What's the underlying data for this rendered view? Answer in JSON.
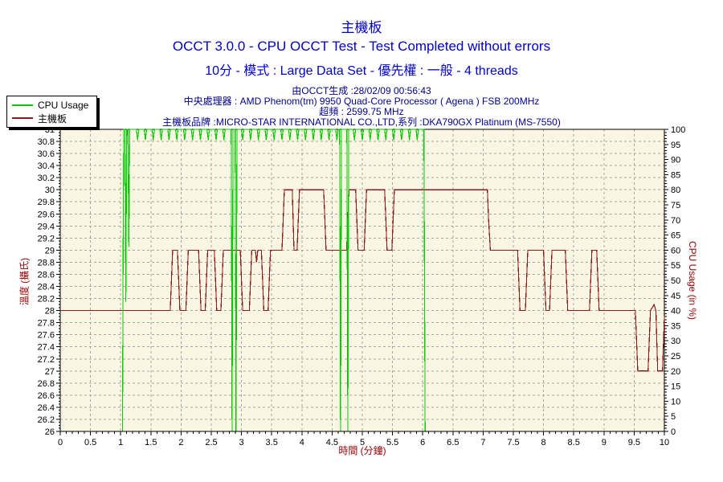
{
  "colors": {
    "title_blue": "#0000CD",
    "info_navy": "#000090",
    "axis_title_red": "#990000",
    "plot_background": "#FBF6E3",
    "grid": "#A6A6A6",
    "axis_border": "#000000",
    "tick_label": "#000000",
    "cpu_usage_green": "#00CC00",
    "temperature_red": "#8B1A1A"
  },
  "titles": {
    "sensor": "主機板",
    "test": "OCCT 3.0.0 - CPU OCCT Test - Test Completed without errors",
    "config": "10分 - 模式 : Large Data Set - 優先權 : 一般 - 4 threads"
  },
  "info": {
    "generated": "由OCCT生成 :28/02/09 00:56:43",
    "cpu": "中央處理器 : AMD Phenom(tm) 9950 Quad-Core Processor ( Agena ) FSB 200MHz",
    "frequency": "超頻 : 2599.75 MHz",
    "motherboard": "主機板品牌 :MICRO-STAR INTERNATIONAL CO.,LTD,系列 :DKA790GX Platinum (MS-7550)"
  },
  "legend": {
    "items": [
      {
        "label": "CPU Usage",
        "color": "#00CC00"
      },
      {
        "label": "主機板",
        "color": "#8B1A1A"
      }
    ]
  },
  "chart_data": {
    "type": "line",
    "title": "主機板",
    "x_axis": {
      "label": "時間 (分鐘)",
      "min": 0,
      "max": 10,
      "major_tick": 0.5,
      "minor_tick": 0.1,
      "tick_labels": [
        "0",
        "0.5",
        "1",
        "1.5",
        "2",
        "2.5",
        "3",
        "3.5",
        "4",
        "4.5",
        "5",
        "5.5",
        "6",
        "6.5",
        "7",
        "7.5",
        "8",
        "8.5",
        "9",
        "9.5",
        "10"
      ]
    },
    "y_left": {
      "label": "溫度 (攝氏)",
      "min": 26,
      "max": 31,
      "major_tick": 0.2,
      "minor_tick": 0.05,
      "tick_labels": [
        "26",
        "26.2",
        "26.4",
        "26.6",
        "26.8",
        "27",
        "27.2",
        "27.4",
        "27.6",
        "27.8",
        "28",
        "28.2",
        "28.4",
        "28.6",
        "28.8",
        "29",
        "29.2",
        "29.4",
        "29.6",
        "29.8",
        "30",
        "30.2",
        "30.4",
        "30.6",
        "30.8",
        "31"
      ]
    },
    "y_right": {
      "label": "CPU Usage (in %)",
      "min": 0,
      "max": 100,
      "major_tick": 5,
      "minor_tick": 1,
      "tick_labels": [
        "0",
        "5",
        "10",
        "15",
        "20",
        "25",
        "30",
        "35",
        "40",
        "45",
        "50",
        "55",
        "60",
        "65",
        "70",
        "75",
        "80",
        "85",
        "90",
        "95",
        "100"
      ]
    },
    "grid": {
      "horizontal_step": 0.2,
      "vertical_step": 0.5,
      "style": "dashed"
    },
    "legend_position": "top-left",
    "series": [
      {
        "name": "主機板",
        "axis": "left",
        "color": "#8B1A1A",
        "unit": "°C",
        "points": [
          [
            0,
            28
          ],
          [
            1.82,
            28
          ],
          [
            1.86,
            29
          ],
          [
            1.94,
            29
          ],
          [
            1.98,
            28
          ],
          [
            2.08,
            28
          ],
          [
            2.12,
            29
          ],
          [
            2.29,
            29
          ],
          [
            2.33,
            28
          ],
          [
            2.4,
            28
          ],
          [
            2.44,
            29
          ],
          [
            2.55,
            29
          ],
          [
            2.59,
            28
          ],
          [
            2.66,
            28
          ],
          [
            2.7,
            29
          ],
          [
            2.98,
            29
          ],
          [
            3.02,
            28
          ],
          [
            3.13,
            28
          ],
          [
            3.17,
            29
          ],
          [
            3.23,
            29
          ],
          [
            3.25,
            28.8
          ],
          [
            3.27,
            29
          ],
          [
            3.33,
            29
          ],
          [
            3.37,
            28
          ],
          [
            3.44,
            28
          ],
          [
            3.48,
            29
          ],
          [
            3.67,
            29
          ],
          [
            3.71,
            30
          ],
          [
            3.84,
            30
          ],
          [
            3.87,
            29
          ],
          [
            3.92,
            29
          ],
          [
            3.96,
            30
          ],
          [
            4.36,
            30
          ],
          [
            4.4,
            29
          ],
          [
            4.74,
            29
          ],
          [
            4.78,
            30
          ],
          [
            4.89,
            30
          ],
          [
            4.93,
            29
          ],
          [
            5.03,
            29
          ],
          [
            5.07,
            30
          ],
          [
            5.37,
            30
          ],
          [
            5.41,
            29
          ],
          [
            5.49,
            29
          ],
          [
            5.53,
            30
          ],
          [
            7.07,
            30
          ],
          [
            7.09,
            29.5
          ],
          [
            7.12,
            29
          ],
          [
            7.57,
            29
          ],
          [
            7.61,
            28
          ],
          [
            7.7,
            28
          ],
          [
            7.74,
            29
          ],
          [
            8.0,
            29
          ],
          [
            8.04,
            28
          ],
          [
            8.1,
            28
          ],
          [
            8.14,
            29
          ],
          [
            8.36,
            29
          ],
          [
            8.4,
            28
          ],
          [
            8.76,
            28
          ],
          [
            8.8,
            29
          ],
          [
            8.88,
            29
          ],
          [
            8.92,
            28
          ],
          [
            9.52,
            28
          ],
          [
            9.56,
            27
          ],
          [
            9.73,
            27
          ],
          [
            9.77,
            28
          ],
          [
            9.83,
            28.1
          ],
          [
            9.86,
            28
          ],
          [
            9.89,
            27
          ],
          [
            9.97,
            27
          ],
          [
            10,
            27.9
          ]
        ]
      },
      {
        "name": "CPU Usage",
        "axis": "right",
        "color": "#00CC00",
        "unit": "%",
        "points": [
          [
            0,
            0
          ],
          [
            1.03,
            0
          ],
          [
            1.04,
            55
          ],
          [
            1.05,
            100
          ],
          [
            1.07,
            100
          ],
          [
            1.085,
            43
          ],
          [
            1.1,
            100
          ],
          [
            1.12,
            100
          ],
          [
            1.135,
            61
          ],
          [
            1.15,
            100
          ],
          [
            1.26,
            100
          ],
          [
            1.28,
            96.5
          ],
          [
            1.3,
            100
          ],
          [
            1.39,
            100
          ],
          [
            1.41,
            96.5
          ],
          [
            1.43,
            100
          ],
          [
            1.52,
            100
          ],
          [
            1.54,
            96.5
          ],
          [
            1.56,
            100
          ],
          [
            1.65,
            100
          ],
          [
            1.67,
            96.5
          ],
          [
            1.69,
            100
          ],
          [
            1.78,
            100
          ],
          [
            1.8,
            96.5
          ],
          [
            1.82,
            100
          ],
          [
            1.91,
            100
          ],
          [
            1.93,
            96.5
          ],
          [
            1.95,
            100
          ],
          [
            2.04,
            100
          ],
          [
            2.06,
            96.5
          ],
          [
            2.08,
            100
          ],
          [
            2.17,
            100
          ],
          [
            2.19,
            96.5
          ],
          [
            2.21,
            100
          ],
          [
            2.3,
            100
          ],
          [
            2.32,
            96.5
          ],
          [
            2.34,
            100
          ],
          [
            2.43,
            100
          ],
          [
            2.45,
            96.5
          ],
          [
            2.47,
            100
          ],
          [
            2.56,
            100
          ],
          [
            2.58,
            96.5
          ],
          [
            2.6,
            100
          ],
          [
            2.69,
            100
          ],
          [
            2.71,
            96.5
          ],
          [
            2.73,
            100
          ],
          [
            2.83,
            100
          ],
          [
            2.845,
            0
          ],
          [
            2.86,
            100
          ],
          [
            2.895,
            100
          ],
          [
            2.91,
            0
          ],
          [
            2.925,
            100
          ],
          [
            3.0,
            100
          ],
          [
            3.02,
            96.5
          ],
          [
            3.04,
            100
          ],
          [
            3.13,
            100
          ],
          [
            3.15,
            96.5
          ],
          [
            3.17,
            100
          ],
          [
            3.26,
            100
          ],
          [
            3.28,
            96.5
          ],
          [
            3.3,
            100
          ],
          [
            3.39,
            100
          ],
          [
            3.41,
            96.5
          ],
          [
            3.43,
            100
          ],
          [
            3.52,
            100
          ],
          [
            3.54,
            96.5
          ],
          [
            3.56,
            100
          ],
          [
            3.65,
            100
          ],
          [
            3.67,
            96.5
          ],
          [
            3.69,
            100
          ],
          [
            3.78,
            100
          ],
          [
            3.8,
            96.5
          ],
          [
            3.82,
            100
          ],
          [
            3.91,
            100
          ],
          [
            3.93,
            96.5
          ],
          [
            3.95,
            100
          ],
          [
            4.04,
            100
          ],
          [
            4.06,
            96.5
          ],
          [
            4.08,
            100
          ],
          [
            4.17,
            100
          ],
          [
            4.19,
            96.5
          ],
          [
            4.21,
            100
          ],
          [
            4.3,
            100
          ],
          [
            4.32,
            96.5
          ],
          [
            4.34,
            100
          ],
          [
            4.43,
            100
          ],
          [
            4.45,
            96.5
          ],
          [
            4.47,
            100
          ],
          [
            4.56,
            100
          ],
          [
            4.58,
            96.5
          ],
          [
            4.6,
            100
          ],
          [
            4.625,
            100
          ],
          [
            4.64,
            0
          ],
          [
            4.655,
            100
          ],
          [
            4.745,
            100
          ],
          [
            4.76,
            0
          ],
          [
            4.775,
            100
          ],
          [
            4.85,
            100
          ],
          [
            4.87,
            96.5
          ],
          [
            4.89,
            100
          ],
          [
            4.98,
            100
          ],
          [
            5.0,
            96.5
          ],
          [
            5.02,
            100
          ],
          [
            5.11,
            100
          ],
          [
            5.13,
            96.5
          ],
          [
            5.15,
            100
          ],
          [
            5.24,
            100
          ],
          [
            5.26,
            96.5
          ],
          [
            5.28,
            100
          ],
          [
            5.37,
            100
          ],
          [
            5.39,
            96.5
          ],
          [
            5.41,
            100
          ],
          [
            5.5,
            100
          ],
          [
            5.52,
            96.5
          ],
          [
            5.54,
            100
          ],
          [
            5.63,
            100
          ],
          [
            5.65,
            96.5
          ],
          [
            5.67,
            100
          ],
          [
            5.76,
            100
          ],
          [
            5.78,
            96.5
          ],
          [
            5.8,
            100
          ],
          [
            5.89,
            100
          ],
          [
            5.91,
            96.5
          ],
          [
            5.93,
            100
          ],
          [
            6.02,
            100
          ],
          [
            6.04,
            0
          ],
          [
            10,
            0
          ]
        ]
      }
    ]
  }
}
